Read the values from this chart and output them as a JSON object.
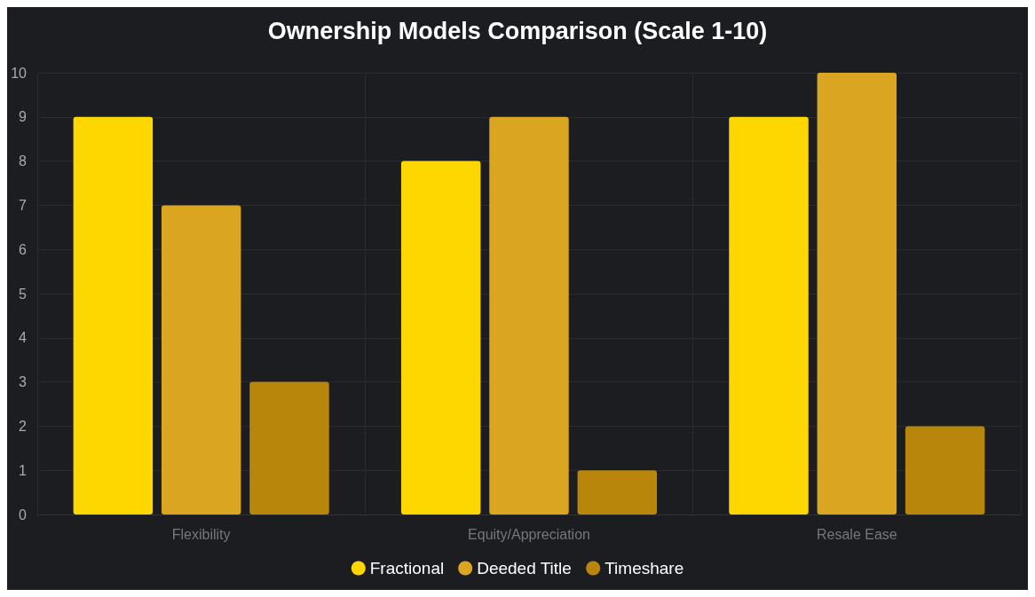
{
  "chart_data": {
    "type": "bar",
    "title": "Ownership Models Comparison (Scale 1-10)",
    "categories": [
      "Flexibility",
      "Equity/Appreciation",
      "Resale Ease"
    ],
    "series": [
      {
        "name": "Fractional",
        "color": "#ffd700",
        "values": [
          9,
          8,
          9
        ]
      },
      {
        "name": "Deeded Title",
        "color": "#daa520",
        "values": [
          7,
          9,
          10
        ]
      },
      {
        "name": "Timeshare",
        "color": "#b8860b",
        "values": [
          3,
          1,
          2
        ]
      }
    ],
    "ylim": [
      0,
      10
    ],
    "yticks": [
      0,
      1,
      2,
      3,
      4,
      5,
      6,
      7,
      8,
      9,
      10
    ],
    "grid": true,
    "legend": "bottom"
  }
}
